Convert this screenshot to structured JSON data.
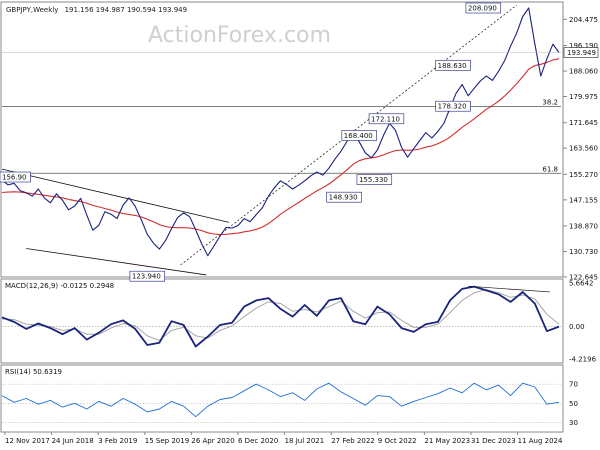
{
  "header": {
    "symbol": "GBPJPY",
    "timeframe": "Weekly",
    "ohlc": "191.156 194.987 190.594 193.949"
  },
  "watermark": "ActionForex.com",
  "colors": {
    "price": "#1a237e",
    "ma": "#d32f2f",
    "macd": "#1a237e",
    "signal": "#9e9e9e",
    "rsi": "#1e6fd9",
    "level": "#555555",
    "channel": "#111111",
    "label_fill": "#ffffff",
    "label_border": "#1a237e"
  },
  "chart_data": [
    {
      "type": "line",
      "panel": "price",
      "title": "GBPJPY,Weekly",
      "ylim": [
        122.645,
        210.0
      ],
      "y_ticks": [
        "204.475",
        "196.190",
        "188.060",
        "179.975",
        "171.645",
        "163.560",
        "155.270",
        "147.155",
        "138.870",
        "130.730",
        "122.645"
      ],
      "last_price": "193.949",
      "x_tick_labels": [
        "12 Nov 2017",
        "24 Jun 2018",
        "3 Feb 2019",
        "15 Sep 2019",
        "26 Apr 2020",
        "6 Dec 2020",
        "18 Jul 2021",
        "27 Feb 2022",
        "9 Oct 2022",
        "21 May 2023",
        "31 Dec 2023",
        "11 Aug 2024"
      ],
      "x": [
        0,
        4,
        8,
        12,
        16,
        20,
        24,
        28,
        32,
        36,
        40,
        44,
        48,
        52,
        56,
        60,
        64,
        68,
        72,
        76,
        80,
        84,
        88,
        92,
        96,
        100,
        104,
        108,
        112,
        116,
        120,
        124,
        128,
        132,
        136,
        140,
        144,
        148,
        152,
        156,
        160,
        164,
        168,
        172,
        176,
        180,
        184,
        188,
        192,
        196,
        200,
        204,
        208,
        212,
        216,
        220,
        224,
        228,
        232,
        236,
        240,
        244,
        248,
        252,
        256,
        260,
        264,
        268,
        272,
        276,
        280,
        284,
        288,
        292,
        296,
        300,
        304,
        308,
        312,
        316,
        320,
        324,
        328,
        332,
        336,
        340,
        344,
        348,
        352,
        356,
        360,
        364,
        368
      ],
      "series": [
        {
          "name": "GBPJPY",
          "values": [
            153.5,
            151.9,
            152.4,
            150.1,
            149.4,
            148.3,
            150.6,
            147.7,
            146.2,
            149.1,
            147.0,
            144.0,
            145.2,
            147.6,
            142.3,
            137.5,
            139.1,
            143.4,
            142.6,
            141.2,
            145.5,
            147.8,
            145.1,
            140.8,
            136.2,
            133.4,
            131.5,
            134.2,
            138.0,
            141.5,
            143.0,
            141.8,
            137.6,
            133.1,
            129.4,
            132.5,
            135.6,
            138.4,
            138.2,
            139.0,
            141.2,
            140.2,
            142.5,
            144.6,
            148.3,
            151.0,
            153.2,
            152.0,
            150.6,
            151.8,
            153.2,
            154.8,
            156.0,
            155.0,
            157.2,
            160.1,
            162.6,
            165.8,
            168.4,
            165.6,
            162.1,
            160.5,
            163.0,
            167.6,
            171.5,
            169.2,
            163.8,
            160.7,
            163.4,
            166.0,
            168.5,
            166.8,
            168.9,
            171.5,
            176.3,
            181.0,
            183.8,
            180.2,
            182.6,
            184.9,
            186.5,
            185.1,
            188.0,
            191.3,
            196.0,
            200.1,
            205.4,
            208.09,
            196.8,
            186.5,
            192.0,
            196.6,
            193.949
          ]
        },
        {
          "name": "SMA",
          "values": [
            149.5,
            149.6,
            149.7,
            149.6,
            149.4,
            149.1,
            148.9,
            148.6,
            148.3,
            148.1,
            147.8,
            147.3,
            146.9,
            146.6,
            146.1,
            145.4,
            144.9,
            144.4,
            143.9,
            143.3,
            142.8,
            142.5,
            142.2,
            141.7,
            141.0,
            140.2,
            139.3,
            138.7,
            138.4,
            138.3,
            138.3,
            138.2,
            137.9,
            137.4,
            136.7,
            136.3,
            136.1,
            136.2,
            136.4,
            136.6,
            137.0,
            137.3,
            137.8,
            138.5,
            139.6,
            141.0,
            142.6,
            143.9,
            145.1,
            146.3,
            147.6,
            148.8,
            150.0,
            151.0,
            152.2,
            153.6,
            155.1,
            156.7,
            158.5,
            159.6,
            160.2,
            160.5,
            160.8,
            161.4,
            162.2,
            162.8,
            163.0,
            162.9,
            163.0,
            163.3,
            163.9,
            164.3,
            165.0,
            165.9,
            167.1,
            168.6,
            170.2,
            171.5,
            172.9,
            174.4,
            175.9,
            177.1,
            178.5,
            180.1,
            182.0,
            184.0,
            186.3,
            188.7,
            189.8,
            190.2,
            190.8,
            191.6,
            192.0
          ]
        }
      ],
      "channel_lines": "descending channel",
      "levels": [
        {
          "label": "38.2",
          "price": 176.8
        },
        {
          "label": "61.8",
          "price": 155.6
        }
      ],
      "annotations": [
        "208.090",
        "188.630",
        "178.320",
        "172.110",
        "168.400",
        "155.330",
        "148.930",
        "123.940",
        "156.90"
      ]
    },
    {
      "type": "line",
      "panel": "macd",
      "title": "MACD(12,26,9) -0.0125 0.2948",
      "ylim": [
        -4.2196,
        5.6642
      ],
      "y_ticks": [
        "5.6642",
        "0.00",
        "-4.2196"
      ],
      "zero_line": true,
      "x": [
        0,
        8,
        16,
        24,
        32,
        40,
        48,
        56,
        64,
        72,
        80,
        88,
        96,
        104,
        112,
        120,
        128,
        136,
        144,
        152,
        160,
        168,
        176,
        184,
        192,
        200,
        208,
        216,
        224,
        232,
        240,
        248,
        256,
        264,
        272,
        280,
        288,
        296,
        304,
        312,
        320,
        328,
        336,
        344,
        352,
        360,
        368
      ],
      "series": [
        {
          "name": "MACD",
          "values": [
            1.2,
            0.6,
            -0.3,
            0.4,
            -0.2,
            -1.0,
            -0.2,
            -1.7,
            -0.8,
            0.3,
            0.8,
            -0.3,
            -2.4,
            -2.1,
            0.7,
            0.2,
            -2.6,
            -1.3,
            0.2,
            0.5,
            2.6,
            3.4,
            3.7,
            2.3,
            1.3,
            2.8,
            1.4,
            3.4,
            3.7,
            0.7,
            0.3,
            2.6,
            1.6,
            -0.2,
            -0.7,
            0.3,
            0.6,
            3.4,
            4.9,
            5.2,
            4.7,
            4.2,
            3.2,
            4.5,
            3.0,
            -0.6,
            -0.0
          ]
        },
        {
          "name": "Signal",
          "values": [
            1.0,
            0.9,
            0.3,
            0.2,
            0.0,
            -0.5,
            -0.3,
            -1.0,
            -1.0,
            -0.2,
            0.4,
            0.1,
            -1.2,
            -1.8,
            -0.5,
            -0.1,
            -1.2,
            -1.5,
            -0.5,
            0.1,
            1.3,
            2.4,
            3.2,
            3.0,
            2.0,
            2.2,
            1.9,
            2.6,
            3.3,
            2.0,
            1.1,
            1.8,
            1.9,
            0.8,
            -0.1,
            -0.1,
            0.3,
            1.8,
            3.4,
            4.4,
            4.8,
            4.4,
            3.8,
            4.1,
            3.6,
            1.6,
            0.3
          ]
        }
      ],
      "trendline": "connecting MACD peaks"
    },
    {
      "type": "line",
      "panel": "rsi",
      "title": "RSI(14) 50.6319",
      "ylim": [
        20,
        90
      ],
      "y_ticks": [
        "70",
        "50",
        "30"
      ],
      "x": [
        0,
        8,
        16,
        24,
        32,
        40,
        48,
        56,
        64,
        72,
        80,
        88,
        96,
        104,
        112,
        120,
        128,
        136,
        144,
        152,
        160,
        168,
        176,
        184,
        192,
        200,
        208,
        216,
        224,
        232,
        240,
        248,
        256,
        264,
        272,
        280,
        288,
        296,
        304,
        312,
        320,
        328,
        336,
        344,
        352,
        360,
        368
      ],
      "series": [
        {
          "name": "RSI",
          "values": [
            58,
            51,
            55,
            49,
            53,
            46,
            50,
            44,
            52,
            47,
            55,
            49,
            41,
            44,
            52,
            47,
            36,
            47,
            54,
            56,
            63,
            70,
            64,
            57,
            61,
            53,
            65,
            71,
            62,
            55,
            48,
            58,
            57,
            47,
            52,
            56,
            60,
            66,
            61,
            71,
            64,
            69,
            58,
            71,
            67,
            49,
            51
          ]
        }
      ]
    }
  ]
}
